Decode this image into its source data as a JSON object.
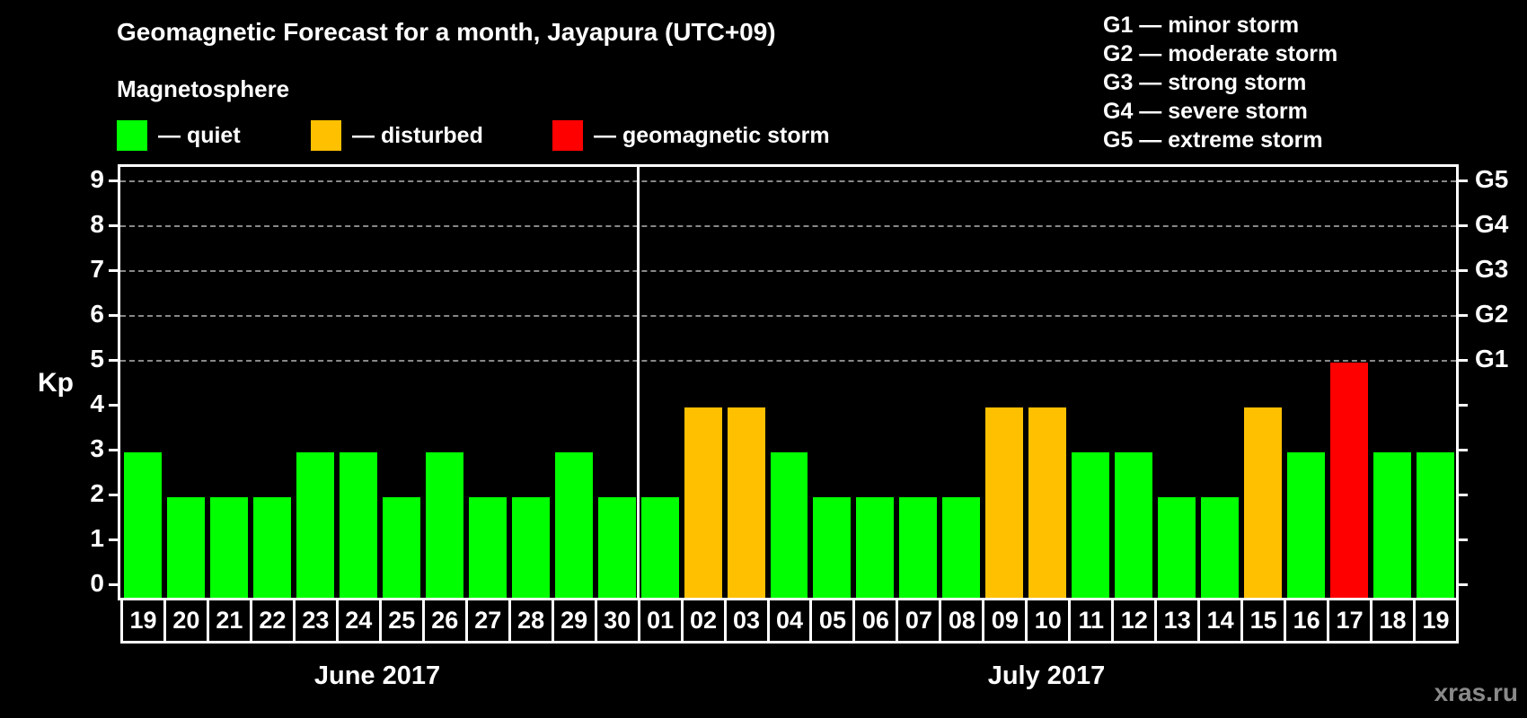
{
  "header": {
    "title": "Geomagnetic Forecast for a month, Jayapura (UTC+09)",
    "subtitle": "Magnetosphere"
  },
  "legend": [
    {
      "label": "— quiet",
      "color": "#00ff00"
    },
    {
      "label": "— disturbed",
      "color": "#ffc000"
    },
    {
      "label": "— geomagnetic storm",
      "color": "#ff0000"
    }
  ],
  "g_legend": [
    "G1 — minor storm",
    "G2 — moderate storm",
    "G3 — strong storm",
    "G4 — severe storm",
    "G5 — extreme storm"
  ],
  "axis": {
    "ylabel": "Kp",
    "yticks": [
      "0",
      "1",
      "2",
      "3",
      "4",
      "5",
      "6",
      "7",
      "8",
      "9"
    ],
    "right_ticks": [
      {
        "level": 5,
        "label": "G1"
      },
      {
        "level": 6,
        "label": "G2"
      },
      {
        "level": 7,
        "label": "G3"
      },
      {
        "level": 8,
        "label": "G4"
      },
      {
        "level": 9,
        "label": "G5"
      }
    ]
  },
  "months": [
    {
      "label": "June 2017"
    },
    {
      "label": "July 2017"
    }
  ],
  "watermark": "xras.ru",
  "colors": {
    "quiet": "#00ff00",
    "disturbed": "#ffc000",
    "storm": "#ff0000",
    "grid": "#888888"
  },
  "chart_data": {
    "type": "bar",
    "title": "Geomagnetic Forecast for a month, Jayapura (UTC+09)",
    "xlabel": "June 2017 / July 2017",
    "ylabel": "Kp",
    "ylim": [
      0,
      9
    ],
    "grid": "dashed horizontal at Kp 5-9",
    "legend_position": "top",
    "categories": [
      "19",
      "20",
      "21",
      "22",
      "23",
      "24",
      "25",
      "26",
      "27",
      "28",
      "29",
      "30",
      "01",
      "02",
      "03",
      "04",
      "05",
      "06",
      "07",
      "08",
      "09",
      "10",
      "11",
      "12",
      "13",
      "14",
      "15",
      "16",
      "17",
      "18",
      "19"
    ],
    "values": [
      3,
      2,
      2,
      2,
      3,
      3,
      2,
      3,
      2,
      2,
      3,
      2,
      2,
      4,
      4,
      3,
      2,
      2,
      2,
      2,
      4,
      4,
      3,
      3,
      2,
      2,
      4,
      3,
      5,
      3,
      3
    ],
    "status": [
      "quiet",
      "quiet",
      "quiet",
      "quiet",
      "quiet",
      "quiet",
      "quiet",
      "quiet",
      "quiet",
      "quiet",
      "quiet",
      "quiet",
      "quiet",
      "disturbed",
      "disturbed",
      "quiet",
      "quiet",
      "quiet",
      "quiet",
      "quiet",
      "disturbed",
      "disturbed",
      "quiet",
      "quiet",
      "quiet",
      "quiet",
      "disturbed",
      "quiet",
      "storm",
      "quiet",
      "quiet"
    ],
    "secondary_axis": {
      "5": "G1",
      "6": "G2",
      "7": "G3",
      "8": "G4",
      "9": "G5"
    }
  }
}
